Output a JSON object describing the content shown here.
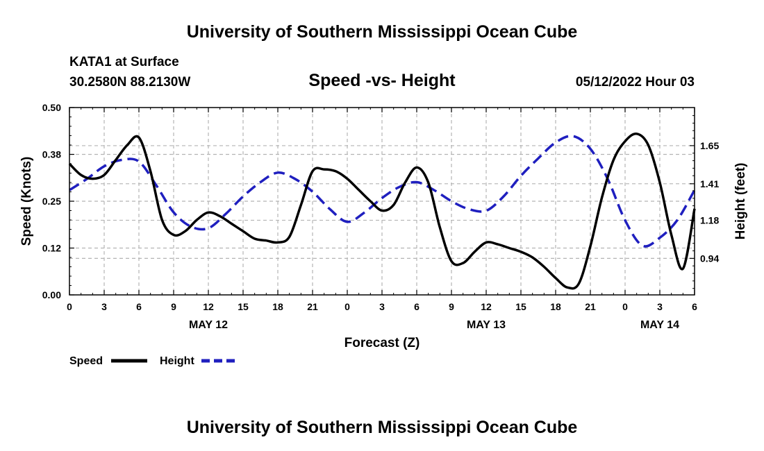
{
  "page": {
    "title_top": "University of Southern Mississippi Ocean Cube",
    "title_bottom": "University of Southern Mississippi Ocean Cube",
    "station": "KATA1 at Surface",
    "coords": "30.2580N  88.2130W",
    "plot_title": "Speed -vs- Height",
    "datetime": "05/12/2022 Hour 03"
  },
  "colors": {
    "speed": "#000000",
    "height": "#1f1fbf",
    "grid": "#b3b3b3"
  },
  "chart_data": {
    "type": "line",
    "title": "Speed -vs- Height",
    "xlabel": "Forecast (Z)",
    "ylabel_left": "Speed (Knots)",
    "ylabel_right": "Height (feet)",
    "x_range_hours": [
      0,
      54
    ],
    "x_tick_labels": [
      "0",
      "3",
      "6",
      "9",
      "12",
      "15",
      "18",
      "21",
      "0",
      "3",
      "6",
      "9",
      "12",
      "15",
      "18",
      "21",
      "0",
      "3",
      "6"
    ],
    "date_labels": [
      {
        "label": "MAY 12",
        "hour": 12
      },
      {
        "label": "MAY 13",
        "hour": 36
      },
      {
        "label": "MAY 14",
        "hour": 51
      }
    ],
    "ylim_left": [
      0,
      0.5
    ],
    "y_ticks_left": [
      "0.00",
      "0.12",
      "0.25",
      "0.38",
      "0.50"
    ],
    "ylim_right": [
      0.71,
      1.89
    ],
    "y_ticks_right": [
      {
        "label": "0.94",
        "value": 0.94
      },
      {
        "label": "1.18",
        "value": 1.18
      },
      {
        "label": "1.41",
        "value": 1.41
      },
      {
        "label": "1.65",
        "value": 1.65
      }
    ],
    "grid": true,
    "legend": [
      {
        "name": "Speed",
        "style": "solid"
      },
      {
        "name": "Height",
        "style": "dashed"
      }
    ],
    "series": [
      {
        "name": "Speed",
        "axis": "left",
        "style": "solid",
        "x": [
          0,
          1,
          2,
          3,
          4,
          5,
          6,
          7,
          8,
          9,
          10,
          11,
          12,
          13,
          14,
          15,
          16,
          17,
          18,
          19,
          20,
          21,
          22,
          23,
          24,
          25,
          26,
          27,
          28,
          29,
          30,
          31,
          32,
          33,
          34,
          35,
          36,
          37,
          38,
          39,
          40,
          41,
          42,
          43,
          44,
          45,
          46,
          47,
          48,
          49,
          50,
          51,
          52,
          53,
          54
        ],
        "values": [
          0.35,
          0.32,
          0.31,
          0.32,
          0.36,
          0.4,
          0.42,
          0.33,
          0.2,
          0.16,
          0.17,
          0.2,
          0.22,
          0.21,
          0.19,
          0.17,
          0.15,
          0.145,
          0.14,
          0.155,
          0.24,
          0.33,
          0.335,
          0.33,
          0.31,
          0.28,
          0.25,
          0.225,
          0.24,
          0.3,
          0.34,
          0.3,
          0.18,
          0.09,
          0.085,
          0.115,
          0.14,
          0.135,
          0.125,
          0.115,
          0.1,
          0.075,
          0.045,
          0.02,
          0.03,
          0.13,
          0.26,
          0.36,
          0.41,
          0.43,
          0.4,
          0.3,
          0.16,
          0.07,
          0.23
        ]
      },
      {
        "name": "Height",
        "axis": "right",
        "style": "dashed",
        "x": [
          0,
          1.5,
          3,
          4.5,
          6,
          7.5,
          9,
          10.5,
          12,
          13.5,
          15,
          16.5,
          18,
          19.5,
          21,
          22.5,
          24,
          25.5,
          27,
          28.5,
          30,
          31.5,
          33,
          34.5,
          36,
          37.5,
          39,
          40.5,
          42,
          43.5,
          45,
          46.5,
          48,
          49.5,
          51,
          52.5,
          54
        ],
        "values": [
          1.37,
          1.44,
          1.52,
          1.56,
          1.55,
          1.4,
          1.23,
          1.14,
          1.13,
          1.22,
          1.33,
          1.42,
          1.48,
          1.44,
          1.36,
          1.25,
          1.17,
          1.23,
          1.32,
          1.39,
          1.42,
          1.37,
          1.3,
          1.25,
          1.24,
          1.33,
          1.46,
          1.57,
          1.67,
          1.71,
          1.63,
          1.44,
          1.18,
          1.02,
          1.07,
          1.18,
          1.37
        ]
      }
    ]
  }
}
